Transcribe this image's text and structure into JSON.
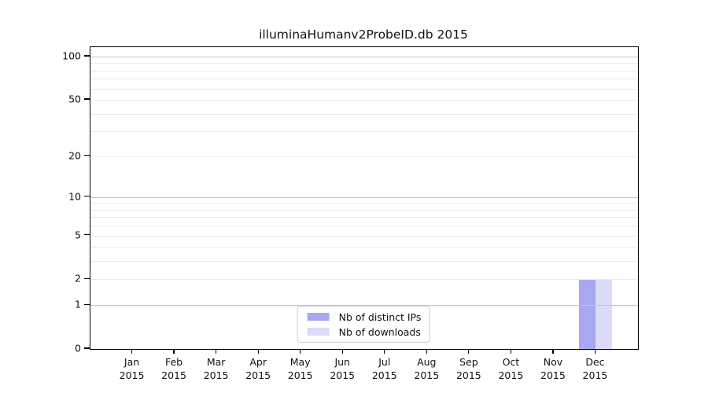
{
  "chart_data": {
    "type": "bar",
    "title": "illuminaHumanv2ProbeID.db 2015",
    "categories": [
      "Jan 2015",
      "Feb 2015",
      "Mar 2015",
      "Apr 2015",
      "May 2015",
      "Jun 2015",
      "Jul 2015",
      "Aug 2015",
      "Sep 2015",
      "Oct 2015",
      "Nov 2015",
      "Dec 2015"
    ],
    "series": [
      {
        "name": "Nb of distinct IPs",
        "color": "#a8a8f0",
        "values": [
          0,
          0,
          0,
          0,
          0,
          0,
          0,
          0,
          0,
          0,
          0,
          2
        ]
      },
      {
        "name": "Nb of downloads",
        "color": "#dbdbf8",
        "values": [
          0,
          0,
          0,
          0,
          0,
          0,
          0,
          0,
          0,
          0,
          0,
          2
        ]
      }
    ],
    "xlabel": "",
    "ylabel": "",
    "yscale": "log1p",
    "ylim": [
      0,
      117
    ],
    "y_ticks": [
      0,
      1,
      2,
      5,
      10,
      20,
      50,
      100
    ],
    "grid": "on",
    "grid_major": [
      1,
      10,
      100
    ],
    "grid_minor": [
      2,
      3,
      4,
      5,
      6,
      7,
      8,
      9,
      20,
      30,
      40,
      50,
      60,
      70,
      80,
      90
    ],
    "legend_position": "lower center inside",
    "colors": {
      "frame": "#000000",
      "grid_major": "#c2c2c2",
      "grid_minor": "#ebebeb",
      "background": "#ffffff"
    }
  }
}
